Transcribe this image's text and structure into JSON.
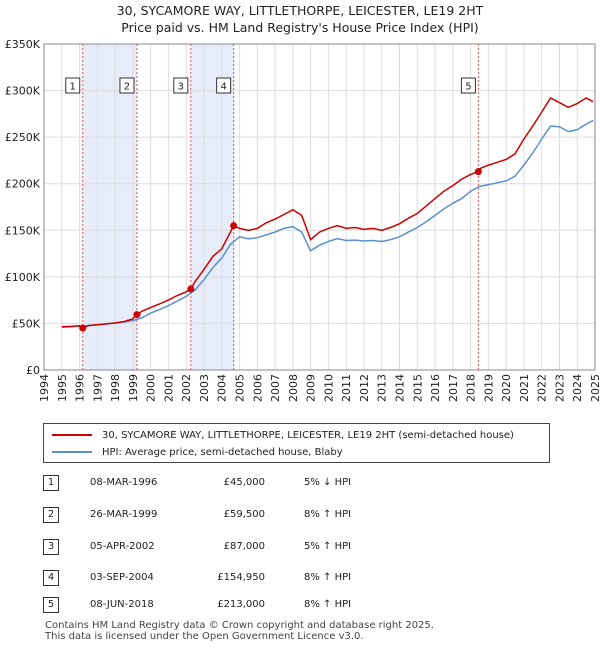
{
  "title_line1": "30, SYCAMORE WAY, LITTLETHORPE, LEICESTER, LE19 2HT",
  "title_line2": "Price paid vs. HM Land Registry's House Price Index (HPI)",
  "colors": {
    "property": "#cc0000",
    "hpi": "#5b8fd0",
    "shade": "#e6ecf8",
    "grid": "#dddddd"
  },
  "chart_data": {
    "type": "line",
    "xlim": [
      1994,
      2025
    ],
    "ylim": [
      0,
      350000
    ],
    "y_ticks": [
      0,
      50000,
      100000,
      150000,
      200000,
      250000,
      300000,
      350000
    ],
    "y_tick_labels": [
      "£0",
      "£50K",
      "£100K",
      "£150K",
      "£200K",
      "£250K",
      "£300K",
      "£350K"
    ],
    "x_ticks": [
      1994,
      1995,
      1996,
      1997,
      1998,
      1999,
      2000,
      2001,
      2002,
      2003,
      2004,
      2005,
      2006,
      2007,
      2008,
      2009,
      2010,
      2011,
      2012,
      2013,
      2014,
      2015,
      2016,
      2017,
      2018,
      2019,
      2020,
      2021,
      2022,
      2023,
      2024,
      2025
    ],
    "shaded_ranges": [
      [
        1996.18,
        1999.23
      ],
      [
        2002.26,
        2004.67
      ]
    ],
    "series": [
      {
        "name": "30, SYCAMORE WAY, LITTLETHORPE, LEICESTER, LE19 2HT (semi-detached house)",
        "color": "#cc0000",
        "x": [
          1995.0,
          1995.5,
          1996.0,
          1996.18,
          1996.5,
          1997.0,
          1997.5,
          1998.0,
          1998.5,
          1999.0,
          1999.23,
          1999.5,
          2000.0,
          2000.5,
          2001.0,
          2001.5,
          2002.0,
          2002.26,
          2002.5,
          2003.0,
          2003.5,
          2004.0,
          2004.67,
          2005.0,
          2005.5,
          2006.0,
          2006.5,
          2007.0,
          2007.5,
          2008.0,
          2008.5,
          2009.0,
          2009.5,
          2010.0,
          2010.5,
          2011.0,
          2011.5,
          2012.0,
          2012.5,
          2013.0,
          2013.5,
          2014.0,
          2014.5,
          2015.0,
          2015.5,
          2016.0,
          2016.5,
          2017.0,
          2017.5,
          2018.0,
          2018.44,
          2018.5,
          2019.0,
          2019.5,
          2020.0,
          2020.5,
          2021.0,
          2021.5,
          2022.0,
          2022.5,
          2023.0,
          2023.5,
          2024.0,
          2024.5,
          2024.9
        ],
        "y": [
          46500,
          46800,
          47500,
          45000,
          47800,
          48500,
          49500,
          50500,
          52000,
          55000,
          59500,
          63000,
          67000,
          71000,
          75000,
          80000,
          84000,
          87000,
          95000,
          108000,
          122000,
          130000,
          154950,
          152000,
          150000,
          152000,
          158000,
          162000,
          167000,
          172000,
          166000,
          140000,
          148000,
          152000,
          155000,
          152000,
          153000,
          151000,
          152000,
          150000,
          153000,
          157000,
          163000,
          168000,
          176000,
          184000,
          192000,
          198000,
          205000,
          210000,
          213000,
          216000,
          220000,
          223000,
          226000,
          232000,
          248000,
          262000,
          277000,
          292000,
          287000,
          282000,
          286000,
          292000,
          288000
        ]
      },
      {
        "name": "HPI: Average price, semi-detached house, Blaby",
        "color": "#5b8fd0",
        "x": [
          1995.0,
          1995.5,
          1996.0,
          1996.5,
          1997.0,
          1997.5,
          1998.0,
          1998.5,
          1999.0,
          1999.5,
          2000.0,
          2000.5,
          2001.0,
          2001.5,
          2002.0,
          2002.5,
          2003.0,
          2003.5,
          2004.0,
          2004.5,
          2005.0,
          2005.5,
          2006.0,
          2006.5,
          2007.0,
          2007.5,
          2008.0,
          2008.5,
          2009.0,
          2009.5,
          2010.0,
          2010.5,
          2011.0,
          2011.5,
          2012.0,
          2012.5,
          2013.0,
          2013.5,
          2014.0,
          2014.5,
          2015.0,
          2015.5,
          2016.0,
          2016.5,
          2017.0,
          2017.5,
          2018.0,
          2018.5,
          2019.0,
          2019.5,
          2020.0,
          2020.5,
          2021.0,
          2021.5,
          2022.0,
          2022.5,
          2023.0,
          2023.5,
          2024.0,
          2024.5,
          2024.9
        ],
        "y": [
          46000,
          46500,
          47000,
          47500,
          48500,
          49500,
          50500,
          51500,
          53000,
          56000,
          61000,
          65000,
          69000,
          74000,
          79000,
          86000,
          97000,
          110000,
          120000,
          135000,
          143000,
          141000,
          142000,
          145000,
          148000,
          152000,
          154000,
          148000,
          128000,
          134000,
          138000,
          141000,
          139000,
          139500,
          138500,
          139000,
          138000,
          140000,
          143000,
          148000,
          153000,
          159000,
          166000,
          173000,
          179000,
          184000,
          192000,
          197000,
          199000,
          201000,
          203000,
          208000,
          220000,
          233000,
          248000,
          262000,
          261000,
          256000,
          258000,
          264000,
          268000
        ]
      }
    ],
    "sale_markers": [
      {
        "label": "1",
        "x": 1996.18,
        "y": 45000
      },
      {
        "label": "2",
        "x": 1999.23,
        "y": 59500
      },
      {
        "label": "3",
        "x": 2002.26,
        "y": 87000
      },
      {
        "label": "4",
        "x": 2004.67,
        "y": 154950
      },
      {
        "label": "5",
        "x": 2018.44,
        "y": 213000
      }
    ]
  },
  "legend": {
    "property": "30, SYCAMORE WAY, LITTLETHORPE, LEICESTER, LE19 2HT (semi-detached house)",
    "hpi": "HPI: Average price, semi-detached house, Blaby"
  },
  "sales": [
    {
      "num": "1",
      "date": "08-MAR-1996",
      "price": "£45,000",
      "diff": "5% ↓ HPI"
    },
    {
      "num": "2",
      "date": "26-MAR-1999",
      "price": "£59,500",
      "diff": "8% ↑ HPI"
    },
    {
      "num": "3",
      "date": "05-APR-2002",
      "price": "£87,000",
      "diff": "5% ↑ HPI"
    },
    {
      "num": "4",
      "date": "03-SEP-2004",
      "price": "£154,950",
      "diff": "8% ↑ HPI"
    },
    {
      "num": "5",
      "date": "08-JUN-2018",
      "price": "£213,000",
      "diff": "8% ↑ HPI"
    }
  ],
  "footer_line1": "Contains HM Land Registry data © Crown copyright and database right 2025.",
  "footer_line2": "This data is licensed under the Open Government Licence v3.0."
}
